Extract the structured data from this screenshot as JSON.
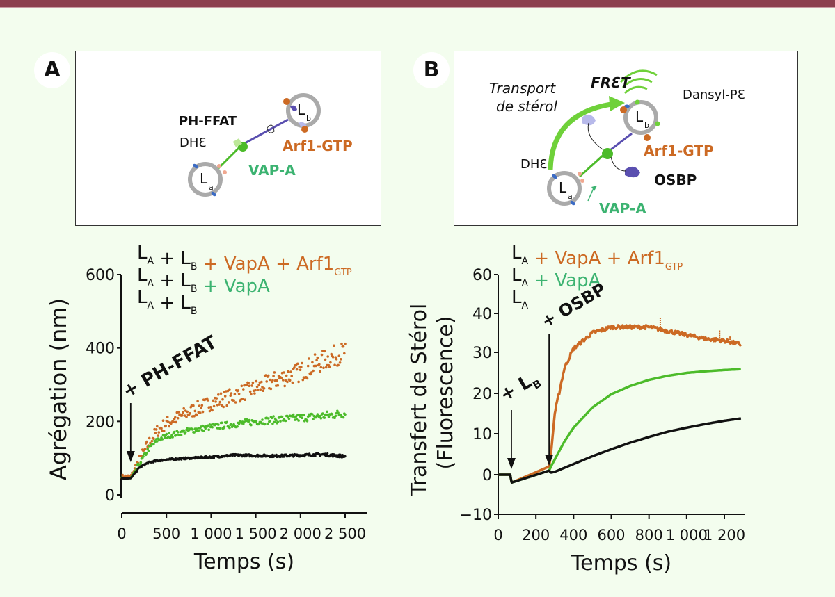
{
  "figure": {
    "panels": [
      {
        "letter": "A",
        "diagram": {
          "labels": {
            "ph_ffat": "PH-FFAT",
            "dhe": "DHƐ",
            "arf1": "Arf1-GTP",
            "vap": "VAP-A",
            "la": "L",
            "la_sub": "a",
            "lb": "L",
            "lb_sub": "b"
          }
        }
      },
      {
        "letter": "B",
        "diagram": {
          "labels": {
            "fret": "FRƐT",
            "transport1": "Transport",
            "transport2": "de stérol",
            "dansyl": "Dansyl-PƐ",
            "dhe": "DHƐ",
            "arf1": "Arf1-GTP",
            "osbp": "OSBP",
            "vap": "VAP-A",
            "la": "L",
            "la_sub": "a",
            "lb": "L",
            "lb_sub": "b"
          }
        }
      }
    ],
    "colors": {
      "orange": "#cc6a24",
      "green_legend": "#3cb371",
      "green_data": "#4cbb2a",
      "black": "#111111",
      "topbar": "#8c3f4e",
      "background": "#f3fdee"
    }
  },
  "chart_data": [
    {
      "type": "scatter",
      "panel": "A",
      "title": "",
      "xlabel": "Temps (s)",
      "ylabel": "Agrégation (nm)",
      "xlim": [
        0,
        2750
      ],
      "ylim": [
        0,
        600
      ],
      "xticks": [
        0,
        500,
        1000,
        1500,
        2000,
        2500
      ],
      "xtick_labels": [
        "0",
        "500",
        "1 000",
        "1 500",
        "2 000",
        "2 500"
      ],
      "yticks": [
        0,
        200,
        400,
        600
      ],
      "ytick_labels": [
        "0",
        "200",
        "400",
        "600"
      ],
      "grid": false,
      "legend_position": "top-left",
      "legend": [
        {
          "parts": [
            [
              "L",
              "A"
            ],
            [
              "+",
              ""
            ],
            [
              "L",
              "B"
            ]
          ],
          "colored": "+ VapA + Arf1",
          "colored_sub": "GTP",
          "color": "orange"
        },
        {
          "parts": [
            [
              "L",
              "A"
            ],
            [
              "+",
              ""
            ],
            [
              "L",
              "B"
            ]
          ],
          "colored": "+ VapA",
          "colored_sub": "",
          "color": "green"
        },
        {
          "parts": [
            [
              "L",
              "A"
            ],
            [
              "+",
              ""
            ],
            [
              "L",
              "B"
            ]
          ],
          "colored": "",
          "colored_sub": "",
          "color": "black"
        }
      ],
      "annotations": [
        {
          "text": "+ PH-FFAT",
          "arrow_at_x": 100
        }
      ],
      "series": [
        {
          "name": "LA + LB + VapA + Arf1GTP",
          "color": "orange",
          "x": [
            0,
            100,
            200,
            300,
            400,
            500,
            750,
            1000,
            1250,
            1500,
            1750,
            2000,
            2250,
            2500
          ],
          "y": [
            50,
            50,
            95,
            140,
            175,
            195,
            225,
            250,
            270,
            290,
            315,
            335,
            365,
            390
          ],
          "noise": 30
        },
        {
          "name": "LA + LB + VapA",
          "color": "green",
          "x": [
            0,
            100,
            200,
            300,
            400,
            500,
            750,
            1000,
            1250,
            1500,
            1750,
            2000,
            2250,
            2500
          ],
          "y": [
            45,
            45,
            85,
            125,
            150,
            160,
            175,
            185,
            192,
            200,
            205,
            210,
            215,
            222
          ],
          "noise": 12
        },
        {
          "name": "LA + LB",
          "color": "black",
          "x": [
            0,
            100,
            200,
            300,
            400,
            500,
            750,
            1000,
            1250,
            1500,
            1750,
            2000,
            2250,
            2500
          ],
          "y": [
            45,
            45,
            75,
            88,
            93,
            96,
            100,
            103,
            108,
            107,
            106,
            108,
            110,
            105
          ],
          "noise": 4
        }
      ]
    },
    {
      "type": "line",
      "panel": "B",
      "title": "",
      "xlabel": "Temps (s)",
      "ylabel": "Transfert de Stérol",
      "ylabel2": "(Fluorescence)",
      "xlim": [
        0,
        1300
      ],
      "ylim": [
        -10,
        60
      ],
      "xticks": [
        0,
        200,
        400,
        600,
        800,
        1000,
        1200
      ],
      "xtick_labels": [
        "0",
        "200",
        "400",
        "600",
        "800",
        "1 000",
        "1 200"
      ],
      "yticks": [
        -10,
        0,
        10,
        20,
        30,
        40,
        60
      ],
      "ytick_labels": [
        "−10",
        "0",
        "10",
        "20",
        "30",
        "40",
        "60"
      ],
      "grid": false,
      "legend_position": "top-left",
      "legend": [
        {
          "parts": [
            [
              "L",
              "A"
            ]
          ],
          "colored": "+ VapA + Arf1",
          "colored_sub": "GTP",
          "color": "orange"
        },
        {
          "parts": [
            [
              "L",
              "A"
            ]
          ],
          "colored": "+ VapA",
          "colored_sub": "",
          "color": "green"
        },
        {
          "parts": [
            [
              "L",
              "A"
            ]
          ],
          "colored": "",
          "colored_sub": "",
          "color": "black"
        }
      ],
      "annotations": [
        {
          "text": "+ L",
          "sub": "B",
          "arrow_at_x": 70
        },
        {
          "text": "+ OSBP",
          "arrow_at_x": 270
        }
      ],
      "series": [
        {
          "name": "LA + VapA + Arf1GTP",
          "color": "orange",
          "x": [
            0,
            65,
            70,
            270,
            280,
            300,
            350,
            400,
            500,
            600,
            700,
            800,
            900,
            1000,
            1100,
            1200,
            1290
          ],
          "y": [
            0,
            0,
            -2,
            2,
            5,
            15,
            26,
            31,
            35,
            36.5,
            36.5,
            36.5,
            35.5,
            34.5,
            33.5,
            33,
            32
          ]
        },
        {
          "name": "LA + VapA",
          "color": "green",
          "x": [
            0,
            65,
            70,
            270,
            280,
            350,
            400,
            500,
            600,
            700,
            800,
            900,
            1000,
            1100,
            1200,
            1290
          ],
          "y": [
            0,
            0,
            -2,
            1,
            2,
            8,
            11.5,
            16.5,
            19.8,
            21.8,
            23.3,
            24.3,
            25,
            25.4,
            25.7,
            25.9
          ]
        },
        {
          "name": "LA",
          "color": "black",
          "x": [
            0,
            65,
            70,
            270,
            280,
            300,
            400,
            500,
            600,
            700,
            800,
            900,
            1000,
            1100,
            1200,
            1290
          ],
          "y": [
            0,
            0,
            -2,
            1,
            0.5,
            0.7,
            2.6,
            4.5,
            6.2,
            7.8,
            9.2,
            10.5,
            11.5,
            12.4,
            13.2,
            13.8
          ]
        }
      ]
    }
  ]
}
